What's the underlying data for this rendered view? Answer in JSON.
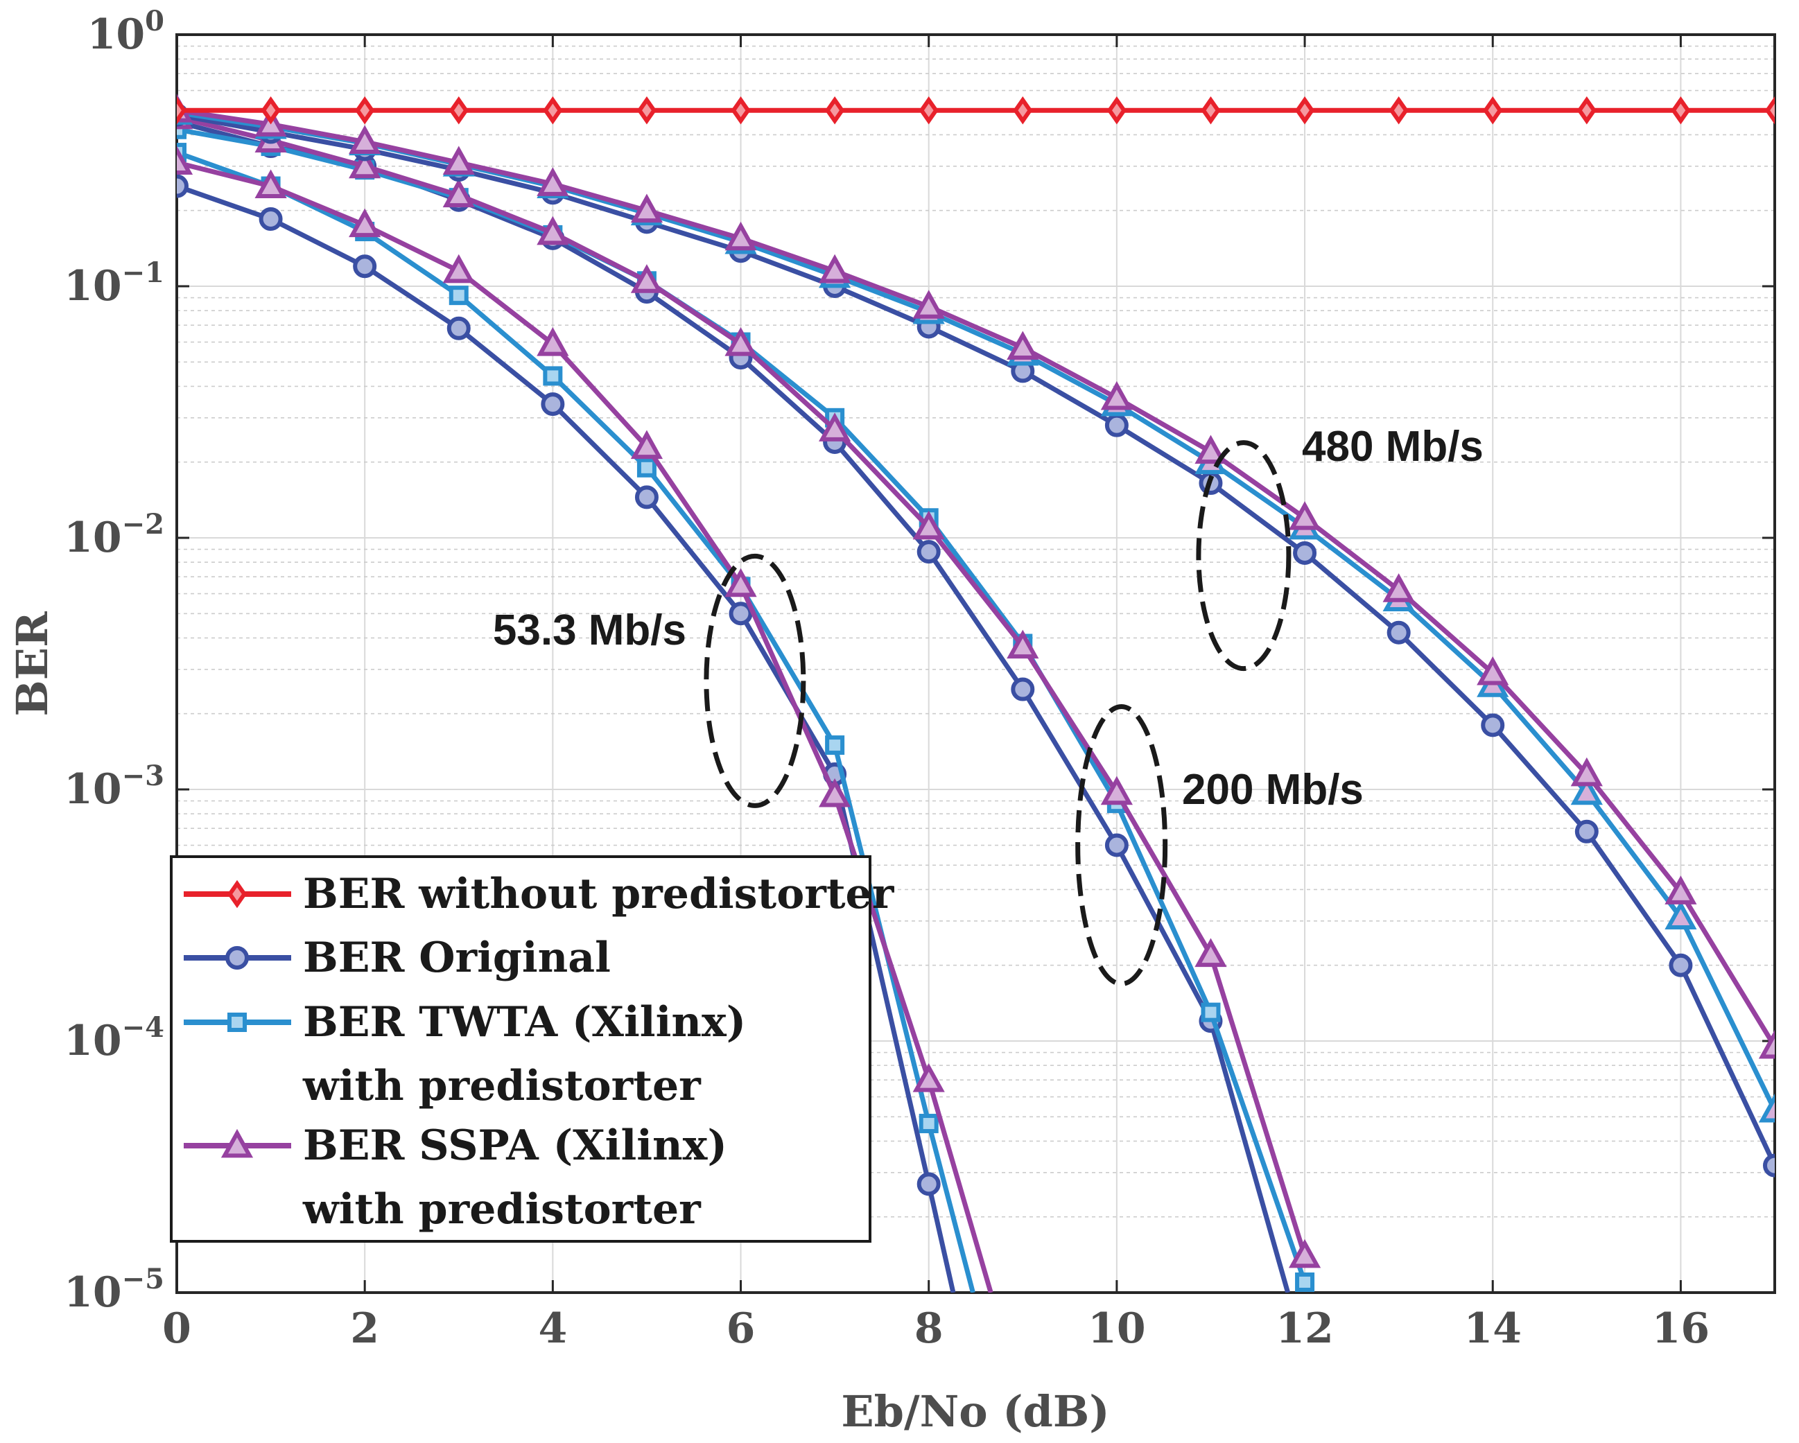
{
  "chart_data": {
    "type": "line",
    "title": "",
    "xlabel": "Eb/No (dB)",
    "ylabel": "BER",
    "xlim": [
      0,
      17
    ],
    "ylim": [
      1e-05,
      1
    ],
    "yscale": "log",
    "grid": true,
    "x_ticks": [
      "0",
      "2",
      "4",
      "6",
      "8",
      "10",
      "12",
      "14",
      "16"
    ],
    "y_ticks": [
      {
        "base": "10",
        "exp": "0"
      },
      {
        "base": "10",
        "exp": "−1"
      },
      {
        "base": "10",
        "exp": "−2"
      },
      {
        "base": "10",
        "exp": "−3"
      },
      {
        "base": "10",
        "exp": "−4"
      },
      {
        "base": "10",
        "exp": "−5"
      }
    ],
    "legend": {
      "placement": "bottom-left",
      "entries": [
        {
          "line1": "BER without predistorter",
          "line2": ""
        },
        {
          "line1": "BER Original",
          "line2": ""
        },
        {
          "line1": "BER TWTA (Xilinx)",
          "line2": "with predistorter"
        },
        {
          "line1": "BER SSPA (Xilinx)",
          "line2": "with predistorter"
        }
      ]
    },
    "annotations": [
      {
        "text": "53.3 Mb/s",
        "x": 6.15,
        "y": 0.00275
      },
      {
        "text": "200 Mb/s",
        "x": 10.05,
        "y": 0.0006
      },
      {
        "text": "480 Mb/s",
        "x": 11.35,
        "y": 0.0085
      }
    ],
    "series": [
      {
        "name": "BER without predistorter",
        "group": "none",
        "color": "#e8212b",
        "marker": "diamond",
        "x": [
          0,
          1,
          2,
          3,
          4,
          5,
          6,
          7,
          8,
          9,
          10,
          11,
          12,
          13,
          14,
          15,
          16,
          17
        ],
        "y": [
          0.5,
          0.5,
          0.5,
          0.5,
          0.5,
          0.5,
          0.5,
          0.5,
          0.5,
          0.5,
          0.5,
          0.5,
          0.5,
          0.5,
          0.5,
          0.5,
          0.5,
          0.5
        ]
      },
      {
        "name": "BER Original",
        "group": "53.3 Mb/s",
        "color": "#3a4fa3",
        "marker": "circle",
        "x": [
          0,
          1,
          2,
          3,
          4,
          5,
          6,
          7,
          8,
          8.26
        ],
        "y": [
          0.25,
          0.185,
          0.12,
          0.068,
          0.034,
          0.0145,
          0.005,
          0.00115,
          2.7e-05,
          1e-05
        ]
      },
      {
        "name": "BER TWTA (Xilinx) with predistorter",
        "group": "53.3 Mb/s",
        "color": "#2a8fcf",
        "marker": "square",
        "x": [
          0,
          1,
          2,
          3,
          4,
          5,
          6,
          7,
          8,
          8.47
        ],
        "y": [
          0.34,
          0.25,
          0.165,
          0.092,
          0.044,
          0.019,
          0.0064,
          0.0015,
          4.7e-05,
          1e-05
        ]
      },
      {
        "name": "BER SSPA (Xilinx) with predistorter",
        "group": "53.3 Mb/s",
        "color": "#9641a0",
        "marker": "triangle",
        "x": [
          0,
          1,
          2,
          3,
          4,
          5,
          6,
          7,
          8,
          8.66
        ],
        "y": [
          0.31,
          0.25,
          0.175,
          0.115,
          0.059,
          0.023,
          0.0065,
          0.00095,
          7e-05,
          1e-05
        ]
      },
      {
        "name": "BER Original",
        "group": "200 Mb/s",
        "color": "#3a4fa3",
        "marker": "circle",
        "x": [
          0,
          1,
          2,
          3,
          4,
          5,
          6,
          7,
          8,
          9,
          10,
          11,
          11.82
        ],
        "y": [
          0.45,
          0.36,
          0.3,
          0.22,
          0.155,
          0.095,
          0.052,
          0.024,
          0.0088,
          0.0025,
          0.0006,
          0.00012,
          1e-05
        ]
      },
      {
        "name": "BER TWTA (Xilinx) with predistorter",
        "group": "200 Mb/s",
        "color": "#2a8fcf",
        "marker": "square",
        "x": [
          0,
          1,
          2,
          3,
          4,
          5,
          6,
          7,
          8,
          9,
          10,
          11,
          12
        ],
        "y": [
          0.42,
          0.36,
          0.29,
          0.225,
          0.16,
          0.105,
          0.06,
          0.03,
          0.012,
          0.0038,
          0.00088,
          0.00013,
          1.1e-05
        ]
      },
      {
        "name": "BER SSPA (Xilinx) with predistorter",
        "group": "200 Mb/s",
        "color": "#9641a0",
        "marker": "triangle",
        "x": [
          0,
          1,
          2,
          3,
          4,
          5,
          6,
          7,
          8,
          9,
          10,
          11,
          12
        ],
        "y": [
          0.47,
          0.38,
          0.3,
          0.23,
          0.163,
          0.105,
          0.059,
          0.027,
          0.011,
          0.0037,
          0.00097,
          0.00022,
          1.4e-05
        ]
      },
      {
        "name": "BER Original",
        "group": "480 Mb/s",
        "color": "#3a4fa3",
        "marker": "circle",
        "x": [
          0,
          1,
          2,
          3,
          4,
          5,
          6,
          7,
          8,
          9,
          10,
          11,
          12,
          13,
          14,
          15,
          16,
          17
        ],
        "y": [
          0.48,
          0.41,
          0.35,
          0.29,
          0.235,
          0.18,
          0.138,
          0.1,
          0.069,
          0.046,
          0.028,
          0.0165,
          0.0087,
          0.0042,
          0.0018,
          0.00068,
          0.0002,
          3.2e-05
        ]
      },
      {
        "name": "BER TWTA (Xilinx) with predistorter",
        "group": "480 Mb/s",
        "color": "#2a8fcf",
        "marker": "triangle",
        "x": [
          0,
          1,
          2,
          3,
          4,
          5,
          6,
          7,
          8,
          9,
          10,
          11,
          12,
          13,
          14,
          15,
          16,
          17
        ],
        "y": [
          0.49,
          0.43,
          0.37,
          0.305,
          0.25,
          0.195,
          0.15,
          0.11,
          0.079,
          0.054,
          0.034,
          0.02,
          0.011,
          0.0057,
          0.0026,
          0.00097,
          0.00031,
          5.3e-05
        ]
      },
      {
        "name": "BER SSPA (Xilinx) with predistorter",
        "group": "480 Mb/s",
        "color": "#9641a0",
        "marker": "triangle",
        "x": [
          0,
          1,
          2,
          3,
          4,
          5,
          6,
          7,
          8,
          9,
          10,
          11,
          12,
          13,
          14,
          15,
          16,
          17
        ],
        "y": [
          0.5,
          0.44,
          0.375,
          0.31,
          0.255,
          0.2,
          0.155,
          0.115,
          0.083,
          0.057,
          0.036,
          0.022,
          0.012,
          0.0062,
          0.0029,
          0.00115,
          0.00039,
          9.5e-05
        ]
      }
    ]
  }
}
